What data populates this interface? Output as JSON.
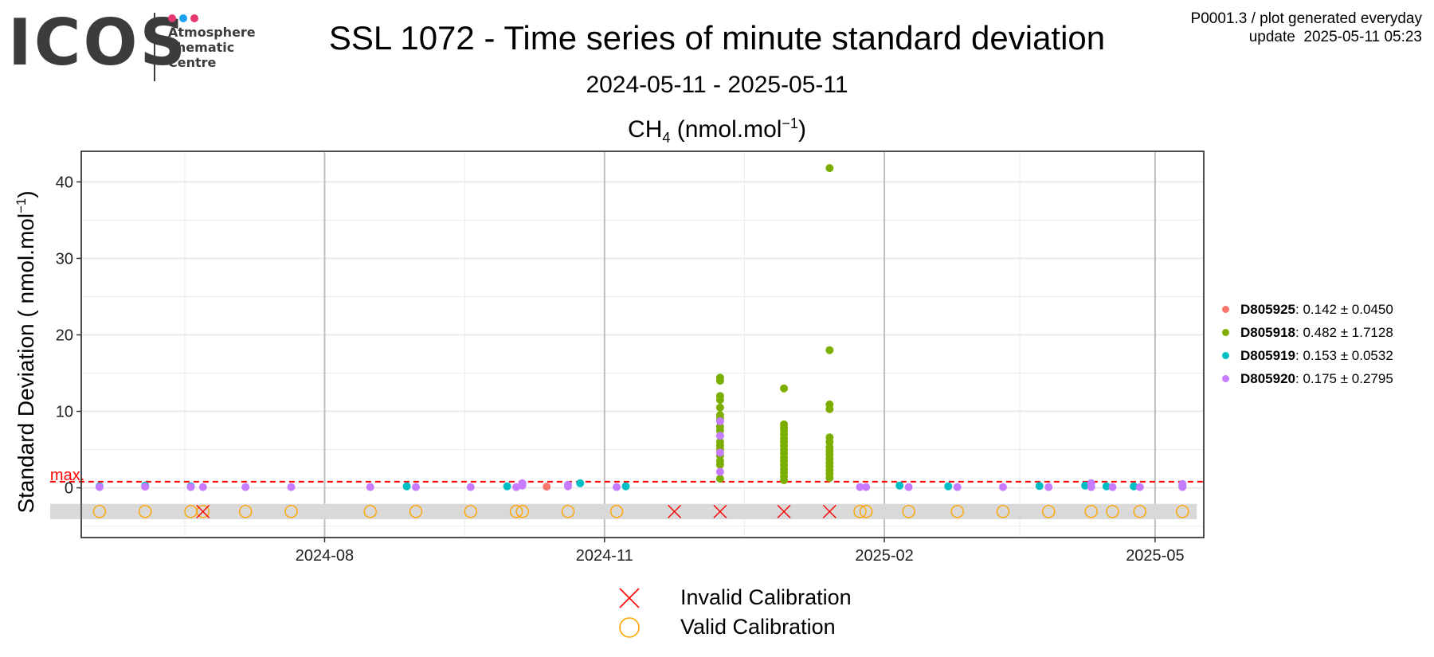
{
  "logo": {
    "text": "ICOS",
    "subtitle": "Atmosphere\nThematic\nCentre",
    "dot_colors": [
      "#e8396e",
      "#1da1f2",
      "#e8396e"
    ]
  },
  "header": {
    "title": "SSL 1072 - Time series of minute standard deviation",
    "date_range": "2024-05-11 - 2025-05-11",
    "panel_gas": "CH",
    "panel_gas_sub": "4",
    "panel_unit_pre": " (nmol.mol",
    "panel_unit_sup": "−1",
    "panel_unit_post": ")",
    "info_line1": "P0001.3 / plot generated everyday",
    "info_line2": "update  2025-05-11 05:23"
  },
  "legend": [
    {
      "name": "D805925",
      "value": ": 0.142 ± 0.0450",
      "color": "#f8766d"
    },
    {
      "name": "D805918",
      "value": ": 0.482 ± 1.7128",
      "color": "#7cae00"
    },
    {
      "name": "D805919",
      "value": ": 0.153 ± 0.0532",
      "color": "#00bfc4"
    },
    {
      "name": "D805920",
      "value": ": 0.175 ± 0.2795",
      "color": "#c77cff"
    }
  ],
  "calibration_legend": {
    "invalid_label": "Invalid Calibration",
    "valid_label": "Valid Calibration",
    "invalid_color": "#ff0000",
    "valid_color": "#ffa500"
  },
  "chart_data": {
    "type": "scatter",
    "title": "SSL 1072 - Time series of minute standard deviation",
    "subtitle": "2024-05-11 - 2025-05-11",
    "ylabel_pre": "Standard Deviation ( nmol.mol",
    "ylabel_sup": "−1",
    "ylabel_post": ")",
    "xlim": [
      "2024-05-13",
      "2025-05-17"
    ],
    "ylim": [
      -6.5,
      44
    ],
    "x_ticks": [
      "2024-08",
      "2024-11",
      "2025-02",
      "2025-05"
    ],
    "x_ticks_dates": [
      "2024-08-01",
      "2024-11-01",
      "2025-02-01",
      "2025-05-01"
    ],
    "y_ticks": [
      0,
      10,
      20,
      30,
      40
    ],
    "max_line": {
      "label": "max.",
      "value": 0.8,
      "color": "#ff0000"
    },
    "grid": true,
    "series": [
      {
        "name": "D805925",
        "color": "#f8766d",
        "points": [
          [
            "2024-06-03",
            0.15
          ],
          [
            "2024-10-13",
            0.15
          ],
          [
            "2025-05-10",
            0.2
          ]
        ]
      },
      {
        "name": "D805918",
        "color": "#7cae00",
        "points": [
          [
            "2024-12-09",
            14.4
          ],
          [
            "2024-12-09",
            14.0
          ],
          [
            "2024-12-09",
            12.0
          ],
          [
            "2024-12-09",
            11.5
          ],
          [
            "2024-12-09",
            10.5
          ],
          [
            "2024-12-09",
            9.5
          ],
          [
            "2024-12-09",
            9.0
          ],
          [
            "2024-12-09",
            8.0
          ],
          [
            "2024-12-09",
            7.5
          ],
          [
            "2024-12-09",
            6.8
          ],
          [
            "2024-12-09",
            6.0
          ],
          [
            "2024-12-09",
            5.5
          ],
          [
            "2024-12-09",
            5.0
          ],
          [
            "2024-12-09",
            4.2
          ],
          [
            "2024-12-09",
            3.5
          ],
          [
            "2024-12-09",
            3.0
          ],
          [
            "2024-12-09",
            1.2
          ],
          [
            "2024-12-30",
            13.0
          ],
          [
            "2024-12-30",
            8.3
          ],
          [
            "2024-12-30",
            7.9
          ],
          [
            "2024-12-30",
            7.5
          ],
          [
            "2024-12-30",
            7.0
          ],
          [
            "2024-12-30",
            6.5
          ],
          [
            "2024-12-30",
            6.0
          ],
          [
            "2024-12-30",
            5.5
          ],
          [
            "2024-12-30",
            5.0
          ],
          [
            "2024-12-30",
            4.5
          ],
          [
            "2024-12-30",
            4.0
          ],
          [
            "2024-12-30",
            3.5
          ],
          [
            "2024-12-30",
            3.0
          ],
          [
            "2024-12-30",
            2.5
          ],
          [
            "2024-12-30",
            2.0
          ],
          [
            "2024-12-30",
            1.5
          ],
          [
            "2024-12-30",
            1.0
          ],
          [
            "2025-01-14",
            41.8
          ],
          [
            "2025-01-14",
            18.0
          ],
          [
            "2025-01-14",
            10.9
          ],
          [
            "2025-01-14",
            10.3
          ],
          [
            "2025-01-14",
            6.6
          ],
          [
            "2025-01-14",
            6.0
          ],
          [
            "2025-01-14",
            5.3
          ],
          [
            "2025-01-14",
            4.8
          ],
          [
            "2025-01-14",
            4.3
          ],
          [
            "2025-01-14",
            3.8
          ],
          [
            "2025-01-14",
            3.3
          ],
          [
            "2025-01-14",
            2.8
          ],
          [
            "2025-01-14",
            2.3
          ],
          [
            "2025-01-14",
            1.8
          ],
          [
            "2025-01-14",
            1.3
          ]
        ]
      },
      {
        "name": "D805919",
        "color": "#00bfc4",
        "points": [
          [
            "2024-05-19",
            0.2
          ],
          [
            "2024-06-03",
            0.3
          ],
          [
            "2024-06-18",
            0.2
          ],
          [
            "2024-08-28",
            0.2
          ],
          [
            "2024-09-30",
            0.2
          ],
          [
            "2024-10-24",
            0.6
          ],
          [
            "2024-11-08",
            0.2
          ],
          [
            "2025-02-06",
            0.3
          ],
          [
            "2025-02-22",
            0.2
          ],
          [
            "2025-03-24",
            0.25
          ],
          [
            "2025-04-08",
            0.3
          ],
          [
            "2025-04-15",
            0.2
          ],
          [
            "2025-04-24",
            0.2
          ],
          [
            "2025-05-10",
            0.3
          ]
        ]
      },
      {
        "name": "D805920",
        "color": "#c77cff",
        "points": [
          [
            "2024-05-19",
            0.1
          ],
          [
            "2024-06-03",
            0.15
          ],
          [
            "2024-06-18",
            0.1
          ],
          [
            "2024-06-22",
            0.1
          ],
          [
            "2024-07-06",
            0.1
          ],
          [
            "2024-07-21",
            0.1
          ],
          [
            "2024-08-16",
            0.1
          ],
          [
            "2024-08-31",
            0.1
          ],
          [
            "2024-09-18",
            0.1
          ],
          [
            "2024-10-03",
            0.1
          ],
          [
            "2024-10-05",
            0.3
          ],
          [
            "2024-10-05",
            0.6
          ],
          [
            "2024-10-20",
            0.2
          ],
          [
            "2024-10-20",
            0.4
          ],
          [
            "2024-11-05",
            0.1
          ],
          [
            "2024-12-09",
            8.7
          ],
          [
            "2024-12-09",
            6.8
          ],
          [
            "2024-12-09",
            4.6
          ],
          [
            "2024-12-09",
            2.1
          ],
          [
            "2025-01-24",
            0.1
          ],
          [
            "2025-01-26",
            0.1
          ],
          [
            "2025-02-09",
            0.1
          ],
          [
            "2025-02-25",
            0.1
          ],
          [
            "2025-03-12",
            0.1
          ],
          [
            "2025-03-27",
            0.1
          ],
          [
            "2025-04-10",
            0.1
          ],
          [
            "2025-04-10",
            0.6
          ],
          [
            "2025-04-17",
            0.1
          ],
          [
            "2025-04-26",
            0.1
          ],
          [
            "2025-05-10",
            0.1
          ],
          [
            "2025-05-10",
            0.5
          ]
        ]
      }
    ],
    "calibration_band": [
      -4.1,
      -2.1
    ],
    "valid_calibrations": [
      "2024-05-19",
      "2024-06-03",
      "2024-06-18",
      "2024-06-22",
      "2024-07-06",
      "2024-07-21",
      "2024-08-16",
      "2024-08-31",
      "2024-09-18",
      "2024-10-03",
      "2024-10-05",
      "2024-10-20",
      "2024-11-05",
      "2025-01-24",
      "2025-01-26",
      "2025-02-09",
      "2025-02-25",
      "2025-03-12",
      "2025-03-27",
      "2025-04-10",
      "2025-04-17",
      "2025-04-26",
      "2025-05-10"
    ],
    "invalid_calibrations": [
      "2024-06-22",
      "2024-11-24",
      "2024-12-09",
      "2024-12-30",
      "2025-01-14"
    ],
    "calibration_y": -3.1
  }
}
